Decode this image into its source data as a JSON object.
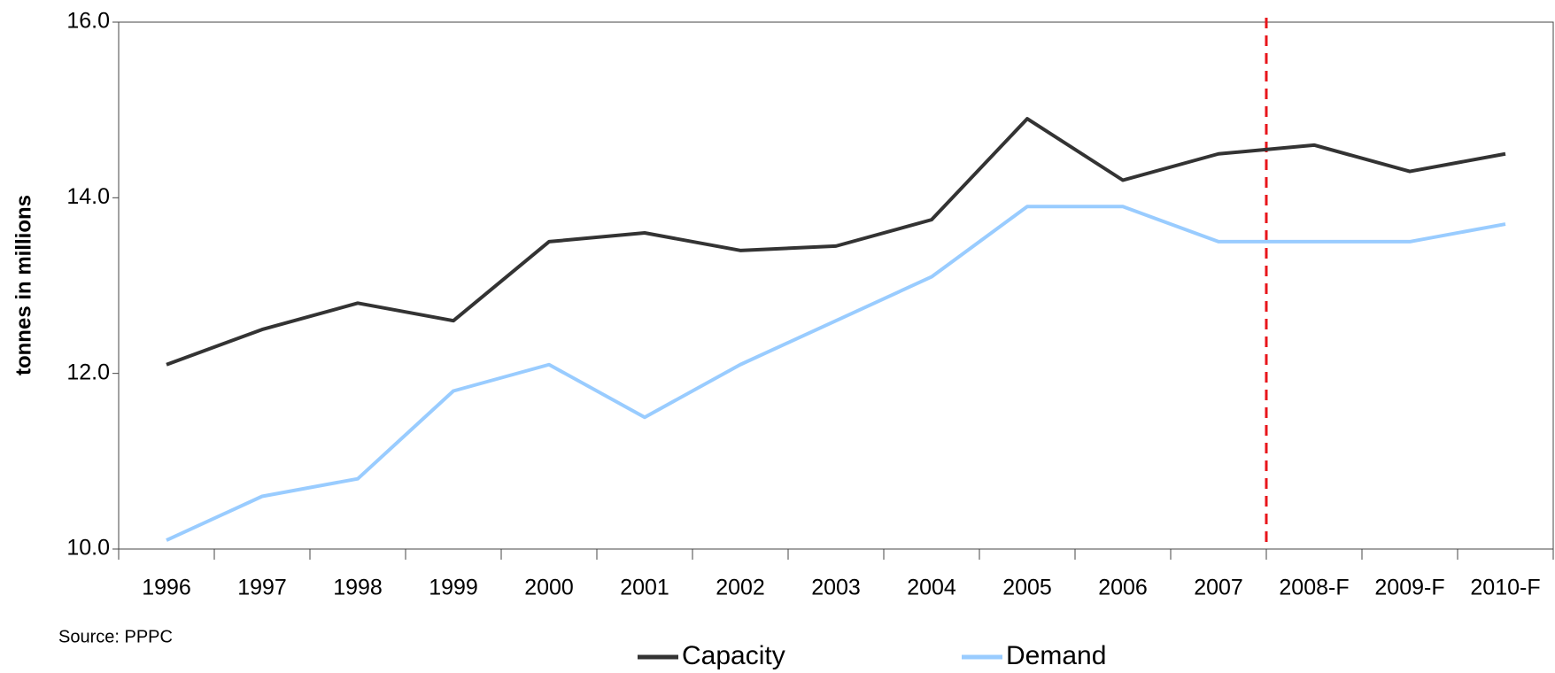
{
  "chart_data": {
    "type": "line",
    "y_label": "tonnes in millions",
    "source": "Source:  PPPC",
    "categories": [
      "1996",
      "1997",
      "1998",
      "1999",
      "2000",
      "2001",
      "2002",
      "2003",
      "2004",
      "2005",
      "2006",
      "2007",
      "2008-F",
      "2009-F",
      "2010-F"
    ],
    "series": [
      {
        "name": "Capacity",
        "color": "#333333",
        "values": [
          12.1,
          12.5,
          12.8,
          12.6,
          13.5,
          13.6,
          13.4,
          13.45,
          13.75,
          14.9,
          14.2,
          14.5,
          14.6,
          14.3,
          14.5
        ]
      },
      {
        "name": "Demand",
        "color": "#99ccff",
        "values": [
          10.1,
          10.6,
          10.8,
          11.8,
          12.1,
          11.5,
          12.1,
          12.6,
          13.1,
          13.9,
          13.9,
          13.5,
          13.5,
          13.5,
          13.7
        ]
      }
    ],
    "ylim": [
      10,
      16
    ],
    "yticks": [
      {
        "value": 10,
        "label": "10.0"
      },
      {
        "value": 12,
        "label": "12.0"
      },
      {
        "value": 14,
        "label": "14.0"
      },
      {
        "value": 16,
        "label": "16.0"
      }
    ],
    "grid": false
  }
}
